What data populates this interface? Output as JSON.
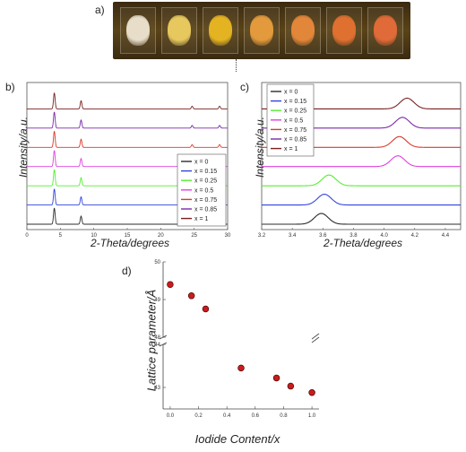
{
  "panel_labels": {
    "a": "a)",
    "b": "b)",
    "c": "c)",
    "d": "d)"
  },
  "photo": {
    "sample_colors": [
      "#e7ddc8",
      "#e6c85e",
      "#e4b322",
      "#e29a3d",
      "#e2863a",
      "#df7030",
      "#e06a38"
    ]
  },
  "chart_data": [
    {
      "id": "b",
      "type": "line",
      "xlabel": "2-Theta/degrees",
      "ylabel": "Intensity/a.u.",
      "xlim": [
        0,
        30
      ],
      "xticks": [
        "0",
        "5",
        "10",
        "15",
        "20",
        "25",
        "30"
      ],
      "peaks_deg": [
        4.1,
        8.1,
        24.7,
        28.8
      ],
      "legend_position": "bottom-right",
      "series": [
        {
          "name": "x = 0",
          "color": "#2b2b2b"
        },
        {
          "name": "x = 0.15",
          "color": "#3344dd"
        },
        {
          "name": "x = 0.25",
          "color": "#55ee33"
        },
        {
          "name": "x = 0.5",
          "color": "#e040e0"
        },
        {
          "name": "x = 0.75",
          "color": "#d93a2a"
        },
        {
          "name": "x = 0.85",
          "color": "#7a2aa8"
        },
        {
          "name": "x = 1",
          "color": "#7a2020"
        }
      ]
    },
    {
      "id": "c",
      "type": "line",
      "xlabel": "2-Theta/degrees",
      "ylabel": "Intensity/a.u.",
      "xlim": [
        3.2,
        4.5
      ],
      "xticks": [
        "3.2",
        "3.4",
        "3.6",
        "3.8",
        "4.0",
        "4.2",
        "4.4"
      ],
      "legend_position": "top-left",
      "series": [
        {
          "name": "x = 0",
          "color": "#2b2b2b",
          "peak": 3.59
        },
        {
          "name": "x = 0.15",
          "color": "#3344dd",
          "peak": 3.61
        },
        {
          "name": "x = 0.25",
          "color": "#55ee33",
          "peak": 3.64
        },
        {
          "name": "x = 0.5",
          "color": "#e040e0",
          "peak": 4.09
        },
        {
          "name": "x = 0.75",
          "color": "#d93a2a",
          "peak": 4.1
        },
        {
          "name": "x = 0.85",
          "color": "#7a2aa8",
          "peak": 4.12
        },
        {
          "name": "x = 1",
          "color": "#7a2020",
          "peak": 4.15
        }
      ]
    },
    {
      "id": "d",
      "type": "scatter",
      "xlabel": "Iodide Content/x",
      "ylabel": "Lattice parameter/Å",
      "xlim": [
        -0.05,
        1.05
      ],
      "xticks": [
        "0.0",
        "0.2",
        "0.4",
        "0.6",
        "0.8",
        "1.0"
      ],
      "y_break": [
        44,
        48
      ],
      "yticks": [
        "43",
        "44",
        "48",
        "49",
        "50"
      ],
      "point_color": "#cc1b1b",
      "points": [
        {
          "x": 0.0,
          "y": 49.4
        },
        {
          "x": 0.15,
          "y": 49.1
        },
        {
          "x": 0.25,
          "y": 48.75
        },
        {
          "x": 0.5,
          "y": 43.45
        },
        {
          "x": 0.75,
          "y": 43.22
        },
        {
          "x": 0.85,
          "y": 43.03
        },
        {
          "x": 1.0,
          "y": 42.88
        }
      ]
    }
  ]
}
